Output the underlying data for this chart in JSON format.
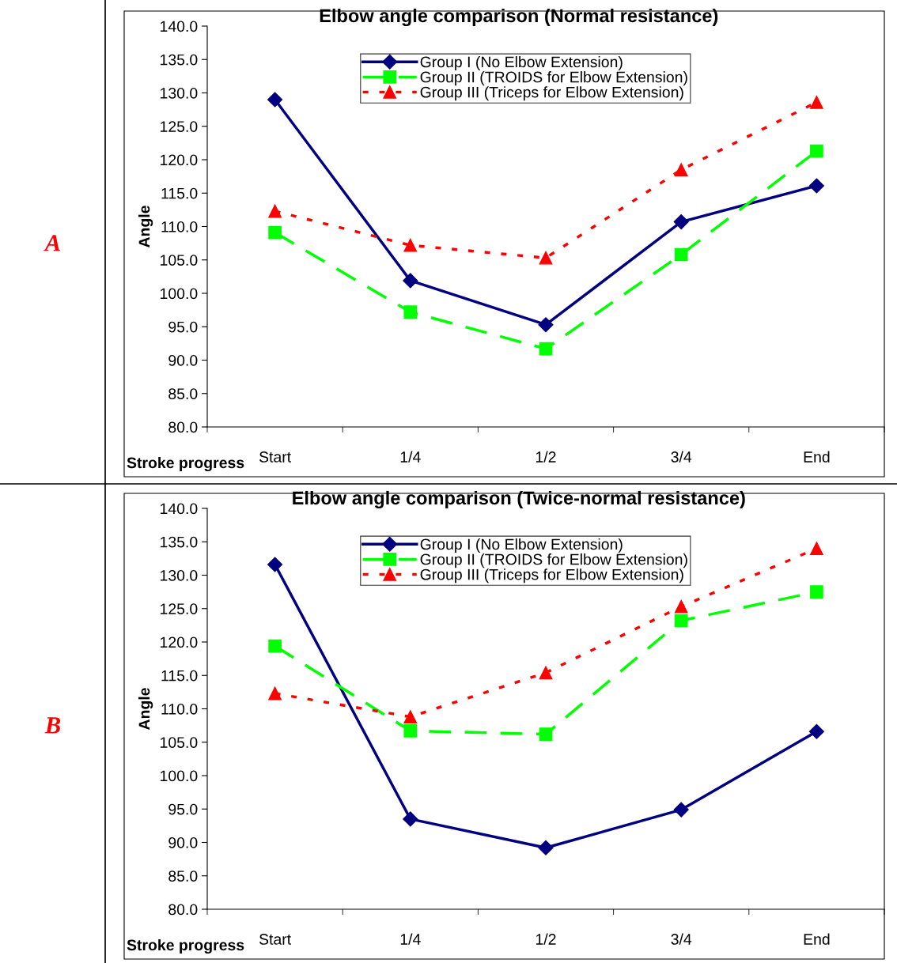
{
  "chart_data": [
    {
      "type": "line",
      "title": "Elbow angle comparison (Normal resistance)",
      "xlabel": "Stroke progress",
      "ylabel": "Angle",
      "annotations": [
        "A"
      ],
      "categories": [
        "Start",
        "1/4",
        "1/2",
        "3/4",
        "End"
      ],
      "ylim": [
        80,
        140
      ],
      "yticks": [
        {
          "value": 80,
          "label": "80.0"
        },
        {
          "value": 85,
          "label": "85.0"
        },
        {
          "value": 90,
          "label": "90.0"
        },
        {
          "value": 95,
          "label": "95.0"
        },
        {
          "value": 100,
          "label": "100.0"
        },
        {
          "value": 105,
          "label": "105.0"
        },
        {
          "value": 110,
          "label": "110.0"
        },
        {
          "value": 115,
          "label": "115.0"
        },
        {
          "value": 120,
          "label": "120.0"
        },
        {
          "value": 125,
          "label": "125.0"
        },
        {
          "value": 130,
          "label": "130.0"
        },
        {
          "value": 135,
          "label": "135.0"
        },
        {
          "value": 140,
          "label": "140.0"
        }
      ],
      "grid": false,
      "legend": "top",
      "series": [
        {
          "name": "Group I (No Elbow Extension)",
          "color": "#000080",
          "marker": "diamond",
          "line_style": "solid",
          "values": [
            129.0,
            101.9,
            95.3,
            110.7,
            116.1
          ]
        },
        {
          "name": "Group II (TROIDS for Elbow Extension)",
          "color": "#00ff00",
          "marker": "square",
          "line_style": "dashed",
          "values": [
            109.1,
            97.2,
            91.7,
            105.8,
            121.3
          ]
        },
        {
          "name": "Group III (Triceps for Elbow Extension)",
          "color": "#ff0000",
          "marker": "triangle",
          "line_style": "dotted",
          "values": [
            112.3,
            107.2,
            105.3,
            118.5,
            128.6
          ]
        }
      ]
    },
    {
      "type": "line",
      "title": "Elbow angle comparison (Twice-normal resistance)",
      "xlabel": "Stroke progress",
      "ylabel": "Angle",
      "annotations": [
        "B"
      ],
      "categories": [
        "Start",
        "1/4",
        "1/2",
        "3/4",
        "End"
      ],
      "ylim": [
        80,
        140
      ],
      "yticks": [
        {
          "value": 80,
          "label": "80.0"
        },
        {
          "value": 85,
          "label": "85.0"
        },
        {
          "value": 90,
          "label": "90.0"
        },
        {
          "value": 95,
          "label": "95.0"
        },
        {
          "value": 100,
          "label": "100.0"
        },
        {
          "value": 105,
          "label": "105.0"
        },
        {
          "value": 110,
          "label": "110.0"
        },
        {
          "value": 115,
          "label": "115.0"
        },
        {
          "value": 120,
          "label": "120.0"
        },
        {
          "value": 125,
          "label": "125.0"
        },
        {
          "value": 130,
          "label": "130.0"
        },
        {
          "value": 135,
          "label": "135.0"
        },
        {
          "value": 140,
          "label": "140.0"
        }
      ],
      "grid": false,
      "legend": "top",
      "series": [
        {
          "name": "Group I (No Elbow Extension)",
          "color": "#000080",
          "marker": "diamond",
          "line_style": "solid",
          "values": [
            131.6,
            93.5,
            89.2,
            94.9,
            106.6
          ]
        },
        {
          "name": "Group II (TROIDS for Elbow Extension)",
          "color": "#00ff00",
          "marker": "square",
          "line_style": "dashed",
          "values": [
            119.4,
            106.7,
            106.2,
            123.2,
            127.5
          ]
        },
        {
          "name": "Group III (Triceps for Elbow Extension)",
          "color": "#ff0000",
          "marker": "triangle",
          "line_style": "dotted",
          "values": [
            112.3,
            108.8,
            115.4,
            125.3,
            134.0
          ]
        }
      ]
    }
  ]
}
